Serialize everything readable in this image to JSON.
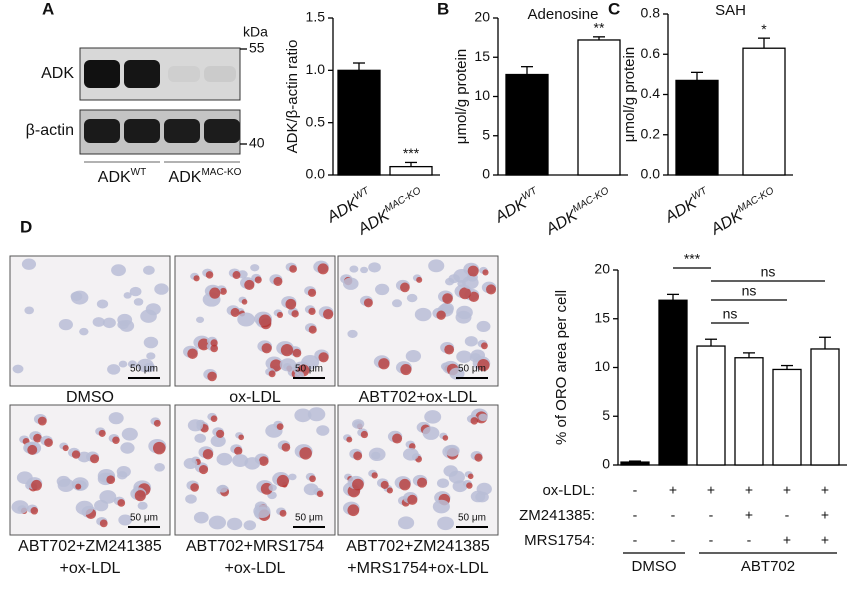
{
  "panels": [
    "A",
    "B",
    "C",
    "D"
  ],
  "blot": {
    "rows": [
      "ADK",
      "β-actin"
    ],
    "unit": "kDa",
    "markers": [
      "55",
      "40"
    ],
    "groups": [
      "ADK",
      "ADK"
    ],
    "group_sups": [
      "WT",
      "MAC-KO"
    ]
  },
  "micrographs": {
    "scale": "50 μm",
    "captions": [
      [
        "DMSO"
      ],
      [
        "ox-LDL"
      ],
      [
        "ABT702+ox-LDL"
      ],
      [
        "ABT702+ZM241385",
        "+ox-LDL"
      ],
      [
        "ABT702+MRS1754",
        "+ox-LDL"
      ],
      [
        "ABT702+ZM241385",
        "+MRS1754+ox-LDL"
      ]
    ]
  },
  "chart_data": [
    {
      "type": "bar",
      "ylabel": "ADK/β-actin ratio",
      "categories": [
        "ADK",
        "ADK"
      ],
      "category_sups": [
        "WT",
        "MAC-KO"
      ],
      "values": [
        1.0,
        0.08
      ],
      "errors": [
        0.07,
        0.04
      ],
      "colors": [
        "#000000",
        "#ffffff"
      ],
      "ylim": [
        0,
        1.5
      ],
      "yticks": [
        {
          "value": 0,
          "label": "0.0"
        },
        0.5,
        {
          "value": 1,
          "label": "1.0"
        },
        1.5
      ],
      "annotations": [
        {
          "index": 1,
          "text": "***"
        }
      ]
    },
    {
      "type": "bar",
      "title": "Adenosine",
      "ylabel": "μmol/g protein",
      "categories": [
        "ADK",
        "ADK"
      ],
      "category_sups": [
        "WT",
        "MAC-KO"
      ],
      "values": [
        12.8,
        17.2
      ],
      "errors": [
        1.0,
        0.4
      ],
      "colors": [
        "#000000",
        "#ffffff"
      ],
      "ylim": [
        0,
        20
      ],
      "yticks": [
        0,
        5,
        10,
        15,
        20
      ],
      "annotations": [
        {
          "index": 1,
          "text": "**"
        }
      ]
    },
    {
      "type": "bar",
      "title": "SAH",
      "ylabel": "μmol/g protein",
      "categories": [
        "ADK",
        "ADK"
      ],
      "category_sups": [
        "WT",
        "MAC-KO"
      ],
      "values": [
        0.47,
        0.63
      ],
      "errors": [
        0.04,
        0.05
      ],
      "colors": [
        "#000000",
        "#ffffff"
      ],
      "ylim": [
        0,
        0.8
      ],
      "yticks": [
        {
          "value": 0,
          "label": "0.0"
        },
        0.2,
        0.4,
        0.6,
        0.8
      ],
      "annotations": [
        {
          "index": 1,
          "text": "*"
        }
      ]
    },
    {
      "type": "bar",
      "ylabel": "% of ORO area per cell",
      "values": [
        0.3,
        16.9,
        12.2,
        11.0,
        9.8,
        11.9
      ],
      "errors": [
        0.1,
        0.6,
        0.7,
        0.5,
        0.4,
        1.2
      ],
      "colors": [
        "#000000",
        "#000000",
        "#ffffff",
        "#ffffff",
        "#ffffff",
        "#ffffff"
      ],
      "ylim": [
        0,
        20
      ],
      "yticks": [
        0,
        5,
        10,
        15,
        20
      ],
      "brackets": [
        {
          "from": 1,
          "to": 2,
          "text": "***"
        },
        {
          "from": 2,
          "to": 5,
          "text": "ns"
        },
        {
          "from": 2,
          "to": 4,
          "text": "ns"
        },
        {
          "from": 2,
          "to": 3,
          "text": "ns"
        }
      ],
      "conditions": [
        {
          "label": "ox-LDL:",
          "marks": [
            "-",
            "+",
            "+",
            "+",
            "+",
            "+"
          ]
        },
        {
          "label": "ZM241385:",
          "marks": [
            "-",
            "-",
            "-",
            "+",
            "-",
            "+"
          ]
        },
        {
          "label": "MRS1754:",
          "marks": [
            "-",
            "-",
            "-",
            "-",
            "+",
            "+"
          ]
        }
      ],
      "groups": [
        {
          "name": "DMSO",
          "from": 0,
          "to": 1
        },
        {
          "name": "ABT702",
          "from": 2,
          "to": 5
        }
      ]
    }
  ]
}
